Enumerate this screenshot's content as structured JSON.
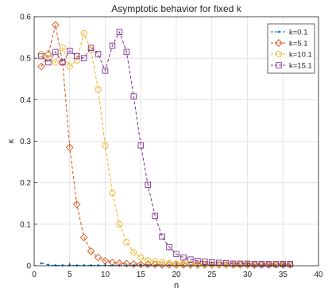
{
  "chart_data": {
    "type": "line",
    "title": "Asymptotic behavior for fixed k",
    "xlabel": "n",
    "ylabel": "κ",
    "xlim": [
      0,
      40
    ],
    "ylim": [
      0,
      0.6
    ],
    "xticks": [
      "0",
      "5",
      "10",
      "15",
      "20",
      "25",
      "30",
      "35",
      "40"
    ],
    "yticks": [
      "0",
      "0.1",
      "0.2",
      "0.3",
      "0.4",
      "0.5",
      "0.6"
    ],
    "grid": true,
    "legend_position": "top-right",
    "line_style": "dashed",
    "series": [
      {
        "name": "k=0.1",
        "color": "#0072BD",
        "marker": "point",
        "x": [
          1,
          2,
          3,
          4,
          5,
          6,
          7,
          8,
          9,
          10,
          11,
          12,
          13,
          14,
          15,
          16,
          17,
          18,
          19,
          20,
          21,
          22,
          23,
          24,
          25,
          26,
          27,
          28,
          29,
          30,
          31,
          32,
          33,
          34,
          35,
          36
        ],
        "y": [
          0.006,
          0.002,
          0.001,
          0.001,
          0.001,
          0.001,
          0.001,
          0.001,
          0.001,
          0.001,
          0.001,
          0.001,
          0.001,
          0.001,
          0.001,
          0.001,
          0.001,
          0.001,
          0.001,
          0.001,
          0.001,
          0.001,
          0.001,
          0.001,
          0.001,
          0.001,
          0.001,
          0.001,
          0.001,
          0.001,
          0.001,
          0.001,
          0.001,
          0.001,
          0.001,
          0.001
        ]
      },
      {
        "name": "k=5.1",
        "color": "#D95319",
        "marker": "diamond",
        "x": [
          1,
          2,
          3,
          4,
          5,
          6,
          7,
          8,
          9,
          10,
          11,
          12,
          13,
          14,
          15,
          16,
          17,
          18,
          19,
          20,
          21,
          22,
          23,
          24,
          25,
          26,
          27,
          28,
          29,
          30,
          31,
          32,
          33,
          34,
          35,
          36
        ],
        "y": [
          0.48,
          0.51,
          0.58,
          0.49,
          0.285,
          0.148,
          0.068,
          0.035,
          0.02,
          0.012,
          0.008,
          0.006,
          0.005,
          0.004,
          0.003,
          0.003,
          0.003,
          0.002,
          0.002,
          0.002,
          0.002,
          0.002,
          0.002,
          0.002,
          0.002,
          0.002,
          0.002,
          0.002,
          0.002,
          0.002,
          0.002,
          0.002,
          0.002,
          0.002,
          0.002,
          0.002
        ]
      },
      {
        "name": "k=10.1",
        "color": "#EDB120",
        "marker": "circle",
        "x": [
          1,
          2,
          3,
          4,
          5,
          6,
          7,
          8,
          9,
          10,
          11,
          12,
          13,
          14,
          15,
          16,
          17,
          18,
          19,
          20,
          21,
          22,
          23,
          24,
          25,
          26,
          27,
          28,
          29,
          30,
          31,
          32,
          33,
          34,
          35,
          36
        ],
        "y": [
          0.51,
          0.5,
          0.49,
          0.525,
          0.48,
          0.495,
          0.56,
          0.52,
          0.425,
          0.29,
          0.175,
          0.1,
          0.057,
          0.032,
          0.02,
          0.013,
          0.01,
          0.008,
          0.006,
          0.005,
          0.005,
          0.004,
          0.004,
          0.004,
          0.003,
          0.003,
          0.003,
          0.003,
          0.003,
          0.003,
          0.003,
          0.003,
          0.003,
          0.003,
          0.003,
          0.003
        ]
      },
      {
        "name": "k=15.1",
        "color": "#7E2F8E",
        "marker": "square",
        "x": [
          1,
          2,
          3,
          4,
          5,
          6,
          7,
          8,
          9,
          10,
          11,
          12,
          13,
          14,
          15,
          16,
          17,
          18,
          19,
          20,
          21,
          22,
          23,
          24,
          25,
          26,
          27,
          28,
          29,
          30,
          31,
          32,
          33,
          34,
          35,
          36
        ],
        "y": [
          0.505,
          0.49,
          0.515,
          0.49,
          0.518,
          0.505,
          0.5,
          0.525,
          0.51,
          0.47,
          0.53,
          0.563,
          0.515,
          0.408,
          0.29,
          0.195,
          0.12,
          0.07,
          0.045,
          0.028,
          0.02,
          0.015,
          0.012,
          0.01,
          0.008,
          0.007,
          0.006,
          0.005,
          0.005,
          0.005,
          0.004,
          0.004,
          0.004,
          0.004,
          0.004,
          0.004
        ]
      }
    ]
  }
}
